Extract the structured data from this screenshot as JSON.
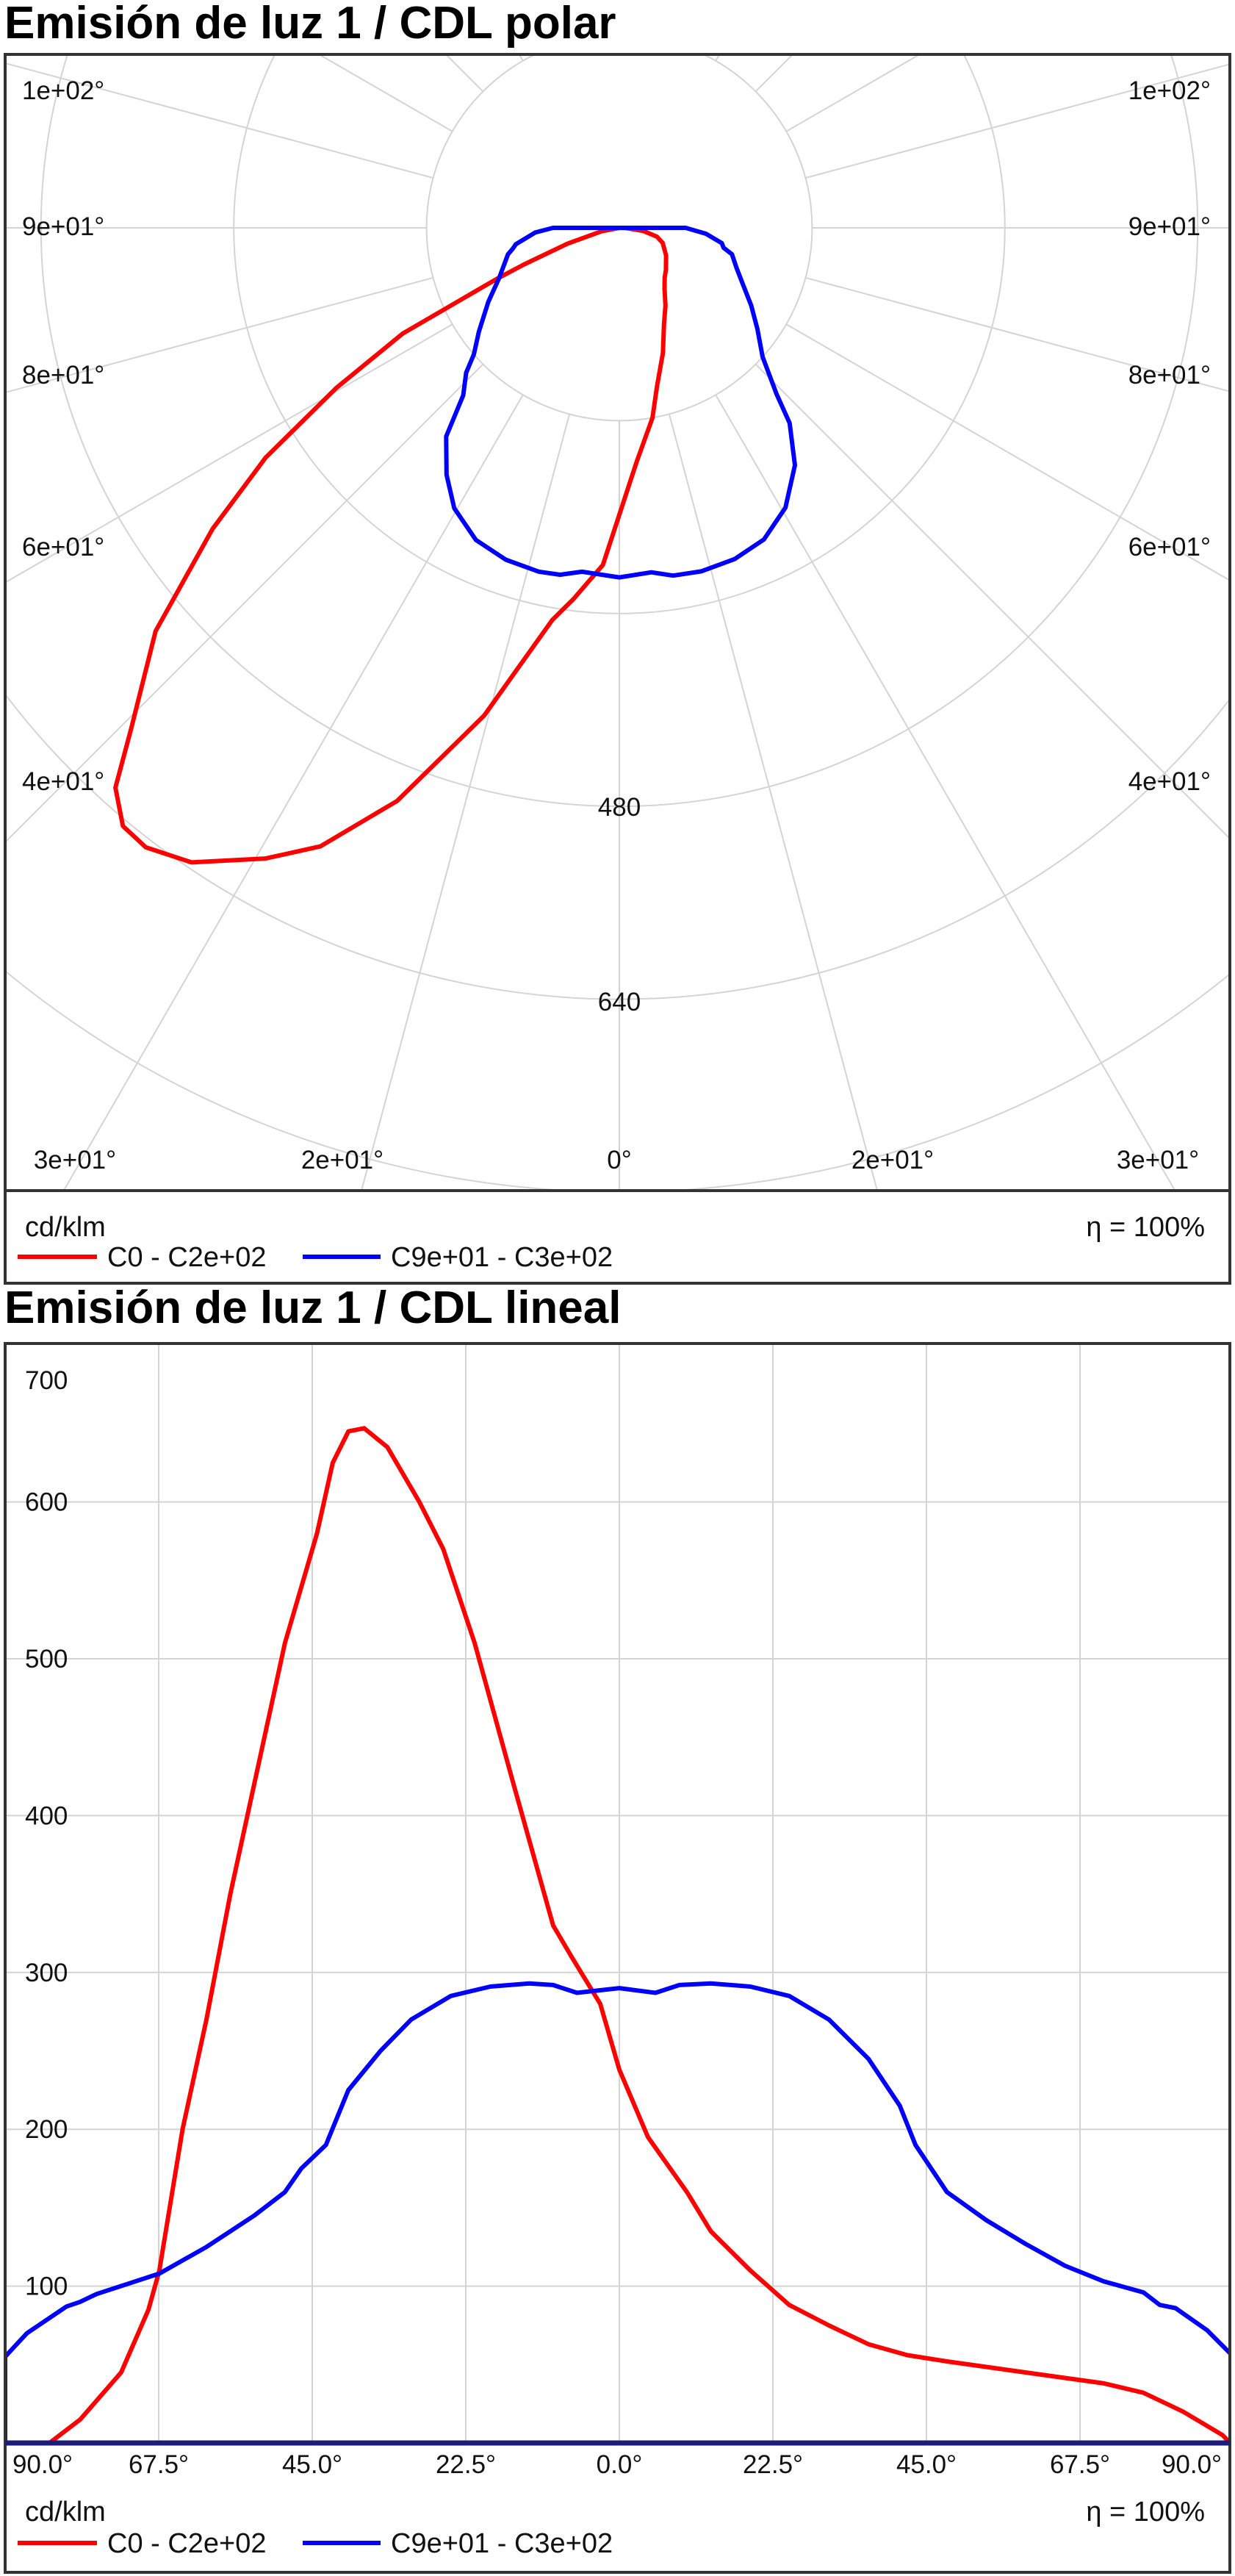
{
  "colors": {
    "red": "#ff0000",
    "blue": "#0000ff",
    "grid": "#d4d4d4",
    "axis": "#1c1c7a",
    "border": "#333333"
  },
  "chart_data": [
    {
      "type": "polar",
      "title": "Emisión de luz 1 / CDL polar",
      "unit_label": "cd/klm",
      "efficiency_label": "η = 100%",
      "radial_labels": [
        "480",
        "640"
      ],
      "radial_rings": [
        160,
        320,
        480,
        640,
        800,
        960,
        1120
      ],
      "angle_step_deg": 15,
      "angle_labels": {
        "left": [
          "1e+02°",
          "9e+01°",
          "8e+01°",
          "6e+01°",
          "4e+01°"
        ],
        "right": [
          "1e+02°",
          "9e+01°",
          "8e+01°",
          "6e+01°",
          "4e+01°"
        ],
        "bottom": [
          "3e+01°",
          "2e+01°",
          "0°",
          "2e+01°",
          "3e+01°"
        ]
      },
      "legend": [
        {
          "name": "C0 - C2e+02",
          "color": "#ff0000"
        },
        {
          "name": "C9e+01 - C3e+02",
          "color": "#0000ff"
        }
      ]
    },
    {
      "type": "line",
      "title": "Emisión de luz 1 / CDL lineal",
      "unit_label": "cd/klm",
      "efficiency_label": "η = 100%",
      "xlim": [
        -90,
        90
      ],
      "ylim": [
        0,
        700
      ],
      "grid": true,
      "x_ticks": [
        -90,
        -67.5,
        -45,
        -22.5,
        0,
        22.5,
        45,
        67.5,
        90
      ],
      "x_tick_labels": [
        "90.0°",
        "67.5°",
        "45.0°",
        "22.5°",
        "0.0°",
        "22.5°",
        "45.0°",
        "67.5°",
        "90.0°"
      ],
      "y_ticks": [
        100,
        200,
        300,
        400,
        500,
        600,
        700
      ],
      "y_tick_labels": [
        "100",
        "200",
        "300",
        "400",
        "500",
        "600",
        "700"
      ],
      "legend": [
        {
          "name": "C0 - C2e+02",
          "color": "#ff0000"
        },
        {
          "name": "C9e+01 - C3e+02",
          "color": "#0000ff"
        }
      ],
      "series": [
        {
          "name": "C0 - C2e+02",
          "color": "#ff0000",
          "points": [
            [
              -83.5,
              0
            ],
            [
              -79,
              15
            ],
            [
              -73,
              45
            ],
            [
              -69,
              85
            ],
            [
              -67.4,
              110
            ],
            [
              -64,
              200
            ],
            [
              -60.5,
              270
            ],
            [
              -57,
              350
            ],
            [
              -53.5,
              420
            ],
            [
              -49,
              510
            ],
            [
              -44.3,
              580
            ],
            [
              -42,
              625
            ],
            [
              -39.7,
              645
            ],
            [
              -37.4,
              647
            ],
            [
              -34,
              635
            ],
            [
              -29.3,
              600
            ],
            [
              -25.8,
              570
            ],
            [
              -21.2,
              510
            ],
            [
              -15.5,
              420
            ],
            [
              -9.7,
              330
            ],
            [
              -7,
              310
            ],
            [
              -2.8,
              280
            ],
            [
              0,
              238
            ],
            [
              4.2,
              195
            ],
            [
              9.9,
              160
            ],
            [
              13.4,
              135
            ],
            [
              19.2,
              110
            ],
            [
              24.9,
              88
            ],
            [
              30.7,
              75
            ],
            [
              36.5,
              63
            ],
            [
              42.2,
              56
            ],
            [
              48,
              52
            ],
            [
              59.5,
              45
            ],
            [
              71,
              38
            ],
            [
              76.8,
              32
            ],
            [
              82.6,
              20
            ],
            [
              88.4,
              5
            ],
            [
              89.5,
              0
            ]
          ]
        },
        {
          "name": "C9e+01 - C3e+02",
          "color": "#0000ff",
          "points": [
            [
              -90,
              0
            ],
            [
              -90,
              55
            ],
            [
              -86.8,
              70
            ],
            [
              -81,
              87
            ],
            [
              -79,
              90
            ],
            [
              -76.6,
              95
            ],
            [
              -67.4,
              108
            ],
            [
              -60.5,
              125
            ],
            [
              -53.5,
              145
            ],
            [
              -49,
              160
            ],
            [
              -46.6,
              175
            ],
            [
              -43,
              190
            ],
            [
              -39.7,
              225
            ],
            [
              -35,
              250
            ],
            [
              -30.5,
              270
            ],
            [
              -24.7,
              285
            ],
            [
              -18.9,
              291
            ],
            [
              -13.2,
              293
            ],
            [
              -9.7,
              292
            ],
            [
              -6.2,
              287
            ],
            [
              0,
              290
            ],
            [
              5.3,
              287
            ],
            [
              8.8,
              292
            ],
            [
              13.4,
              293
            ],
            [
              19.2,
              291
            ],
            [
              24.9,
              285
            ],
            [
              30.7,
              270
            ],
            [
              36.5,
              245
            ],
            [
              41.1,
              215
            ],
            [
              43.4,
              190
            ],
            [
              48,
              160
            ],
            [
              53.8,
              142
            ],
            [
              59.5,
              127
            ],
            [
              65.3,
              113
            ],
            [
              71,
              103
            ],
            [
              76.8,
              96
            ],
            [
              79.2,
              88
            ],
            [
              81.5,
              86
            ],
            [
              86.1,
              72
            ],
            [
              90,
              55
            ],
            [
              90,
              0
            ]
          ]
        }
      ]
    }
  ]
}
